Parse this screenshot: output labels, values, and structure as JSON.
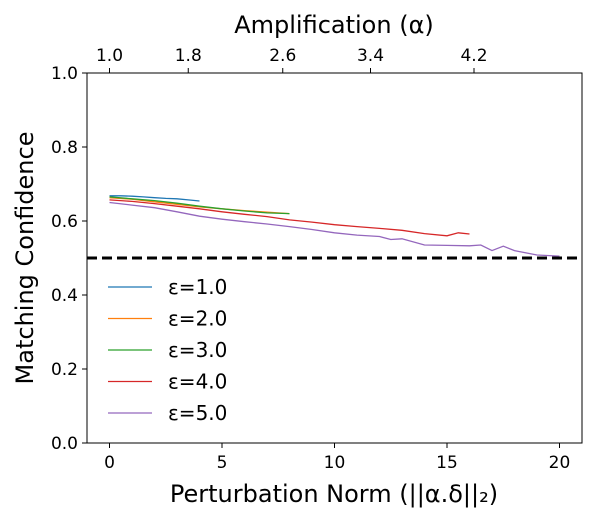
{
  "chart_data": {
    "type": "line",
    "xlabel": "Perturbation Norm (||α.δ||₂)",
    "ylabel": "Matching Confidence",
    "top_xlabel": "Amplification (α)",
    "xlim": [
      -1,
      21
    ],
    "ylim": [
      0.0,
      1.0
    ],
    "xticks": [
      0,
      5,
      10,
      15,
      20
    ],
    "yticks": [
      0.0,
      0.2,
      0.4,
      0.6,
      0.8,
      1.0
    ],
    "top_xticks": [
      {
        "x": 0,
        "label": "1.0"
      },
      {
        "x": 3.5,
        "label": "1.8"
      },
      {
        "x": 7.7,
        "label": "2.6"
      },
      {
        "x": 11.6,
        "label": "3.4"
      },
      {
        "x": 16.2,
        "label": "4.2"
      }
    ],
    "threshold": {
      "y": 0.5,
      "style": "dashed",
      "color": "#000000"
    },
    "grid": false,
    "legend_position": "lower-left",
    "series": [
      {
        "name": "ε=1.0",
        "color": "#1f77b4",
        "x": [
          0,
          0.5,
          1.0,
          1.5,
          2.0,
          2.5,
          3.0,
          3.5,
          4.0
        ],
        "y": [
          0.668,
          0.668,
          0.667,
          0.665,
          0.663,
          0.661,
          0.66,
          0.657,
          0.654
        ]
      },
      {
        "name": "ε=2.0",
        "color": "#ff7f0e",
        "x": [
          0,
          1,
          2,
          3,
          4,
          5,
          6,
          7,
          8
        ],
        "y": [
          0.663,
          0.659,
          0.652,
          0.645,
          0.638,
          0.633,
          0.628,
          0.624,
          0.62
        ]
      },
      {
        "name": "ε=3.0",
        "color": "#2ca02c",
        "x": [
          0,
          1,
          2,
          3,
          4,
          5,
          6,
          7,
          8
        ],
        "y": [
          0.665,
          0.66,
          0.655,
          0.648,
          0.64,
          0.633,
          0.627,
          0.622,
          0.62
        ]
      },
      {
        "name": "ε=4.0",
        "color": "#d62728",
        "x": [
          0,
          1,
          2,
          3,
          4,
          5,
          6,
          7,
          8,
          9,
          10,
          11,
          12,
          13,
          14,
          15,
          15.5,
          16
        ],
        "y": [
          0.657,
          0.653,
          0.647,
          0.64,
          0.633,
          0.625,
          0.618,
          0.612,
          0.603,
          0.597,
          0.59,
          0.585,
          0.58,
          0.575,
          0.566,
          0.56,
          0.568,
          0.565
        ]
      },
      {
        "name": "ε=5.0",
        "color": "#9467bd",
        "x": [
          0,
          1,
          2,
          3,
          4,
          5,
          6,
          7,
          8,
          9,
          10,
          11,
          12,
          12.5,
          13,
          14,
          15,
          16,
          16.5,
          17,
          17.5,
          18,
          19,
          20
        ],
        "y": [
          0.65,
          0.643,
          0.636,
          0.625,
          0.613,
          0.605,
          0.598,
          0.592,
          0.585,
          0.577,
          0.568,
          0.562,
          0.558,
          0.55,
          0.552,
          0.535,
          0.534,
          0.533,
          0.535,
          0.52,
          0.532,
          0.52,
          0.508,
          0.505
        ]
      }
    ]
  }
}
